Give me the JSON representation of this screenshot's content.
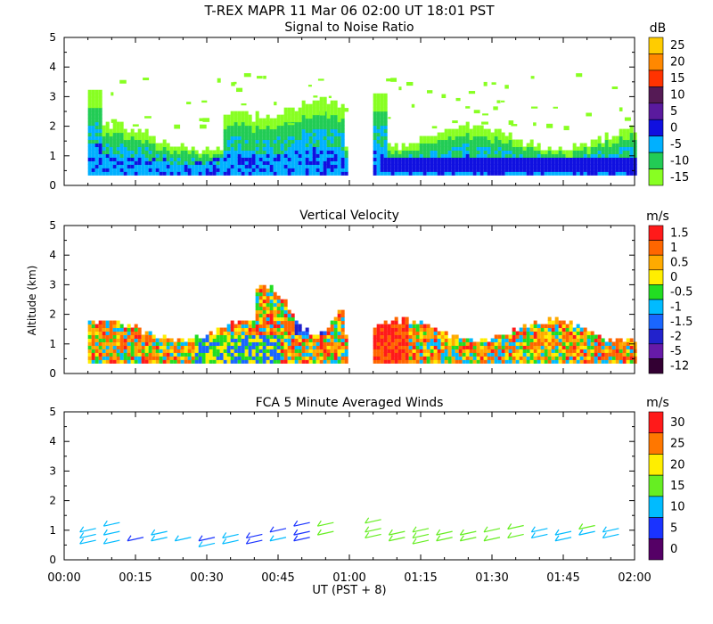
{
  "header": {
    "title": "T-REX   MAPR 11 Mar 06   02:00 UT   18:01   PST"
  },
  "x_axis": {
    "ticks": [
      "00:00",
      "00:15",
      "00:30",
      "00:45",
      "01:00",
      "01:15",
      "01:30",
      "01:45",
      "02:00"
    ],
    "label": "UT  (PST + 8)"
  },
  "y_axis_label": "Altitude (km)",
  "chart_data": [
    {
      "type": "heatmap",
      "title": "Signal to Noise Ratio",
      "xlabel": "UT  (PST + 8)",
      "ylabel": "Altitude (km)",
      "ylim": [
        0,
        5
      ],
      "yticks": [
        "0",
        "1",
        "2",
        "3",
        "4",
        "5"
      ],
      "colorbar": {
        "unit": "dB",
        "labels": [
          "25",
          "20",
          "15",
          "10",
          "5",
          "0",
          "-5",
          "-10",
          "-15"
        ],
        "colors": [
          "#ffcc00",
          "#ff8800",
          "#ff3300",
          "#551a55",
          "#5a1a9e",
          "#1010e0",
          "#00b0ff",
          "#22cc55",
          "#88ff22"
        ]
      },
      "regions": [
        {
          "name": "first-segment",
          "x_start_min": 5,
          "x_end_min": 59,
          "base_km": 0.3,
          "top_km": 1.5,
          "note": "SNR mostly -15 to -5 dB with -5 dB core near 0.5-1 km"
        },
        {
          "name": "second-segment",
          "x_start_min": 65,
          "x_end_min": 120,
          "base_km": 0.3,
          "top_km": 1.5,
          "note": "strong 0 dB layer near 0.6-0.8 km"
        }
      ]
    },
    {
      "type": "heatmap",
      "title": "Vertical Velocity",
      "xlabel": "UT  (PST + 8)",
      "ylabel": "Altitude (km)",
      "ylim": [
        0,
        5
      ],
      "yticks": [
        "0",
        "1",
        "2",
        "3",
        "4",
        "5"
      ],
      "colorbar": {
        "unit": "m/s",
        "labels": [
          "1.5",
          "1",
          "0.5",
          "0",
          "-0.5",
          "-1",
          "-1.5",
          "-2",
          "-5",
          "-12"
        ],
        "colors": [
          "#ff1a1a",
          "#ff6600",
          "#ffaa00",
          "#ffee00",
          "#22dd22",
          "#00bbff",
          "#1a66ff",
          "#2222cc",
          "#661aa8",
          "#330033"
        ]
      }
    },
    {
      "type": "scatter",
      "title": "FCA 5 Minute Averaged Winds",
      "xlabel": "UT  (PST + 8)",
      "ylabel": "Altitude (km)",
      "ylim": [
        0,
        5
      ],
      "yticks": [
        "0",
        "1",
        "2",
        "3",
        "4",
        "5"
      ],
      "colorbar": {
        "unit": "m/s",
        "labels": [
          "30",
          "25",
          "20",
          "15",
          "10",
          "5",
          "0"
        ],
        "colors": [
          "#ff1a1a",
          "#ff7700",
          "#ffee00",
          "#66ee22",
          "#00bbff",
          "#1a33ff",
          "#550066"
        ]
      },
      "barbs": [
        {
          "t": 5,
          "alt": 1.0,
          "speed": 8
        },
        {
          "t": 5,
          "alt": 0.8,
          "speed": 10
        },
        {
          "t": 5,
          "alt": 0.6,
          "speed": 10
        },
        {
          "t": 10,
          "alt": 1.2,
          "speed": 10
        },
        {
          "t": 10,
          "alt": 0.9,
          "speed": 10
        },
        {
          "t": 10,
          "alt": 0.6,
          "speed": 10
        },
        {
          "t": 15,
          "alt": 0.7,
          "speed": 5
        },
        {
          "t": 20,
          "alt": 0.9,
          "speed": 10
        },
        {
          "t": 20,
          "alt": 0.7,
          "speed": 10
        },
        {
          "t": 25,
          "alt": 0.7,
          "speed": 10
        },
        {
          "t": 30,
          "alt": 0.7,
          "speed": 5
        },
        {
          "t": 30,
          "alt": 0.5,
          "speed": 8
        },
        {
          "t": 35,
          "alt": 0.8,
          "speed": 8
        },
        {
          "t": 35,
          "alt": 0.6,
          "speed": 8
        },
        {
          "t": 40,
          "alt": 0.8,
          "speed": 5
        },
        {
          "t": 40,
          "alt": 0.6,
          "speed": 5
        },
        {
          "t": 45,
          "alt": 1.0,
          "speed": 5
        },
        {
          "t": 45,
          "alt": 0.7,
          "speed": 8
        },
        {
          "t": 50,
          "alt": 1.2,
          "speed": 5
        },
        {
          "t": 50,
          "alt": 0.9,
          "speed": 5
        },
        {
          "t": 50,
          "alt": 0.7,
          "speed": 5
        },
        {
          "t": 55,
          "alt": 1.2,
          "speed": 15
        },
        {
          "t": 55,
          "alt": 0.9,
          "speed": 15
        },
        {
          "t": 65,
          "alt": 1.3,
          "speed": 15
        },
        {
          "t": 65,
          "alt": 1.0,
          "speed": 15
        },
        {
          "t": 65,
          "alt": 0.8,
          "speed": 15
        },
        {
          "t": 70,
          "alt": 0.9,
          "speed": 15
        },
        {
          "t": 70,
          "alt": 0.7,
          "speed": 15
        },
        {
          "t": 75,
          "alt": 1.0,
          "speed": 15
        },
        {
          "t": 75,
          "alt": 0.8,
          "speed": 15
        },
        {
          "t": 75,
          "alt": 0.6,
          "speed": 15
        },
        {
          "t": 80,
          "alt": 0.9,
          "speed": 15
        },
        {
          "t": 80,
          "alt": 0.7,
          "speed": 15
        },
        {
          "t": 85,
          "alt": 0.9,
          "speed": 15
        },
        {
          "t": 85,
          "alt": 0.7,
          "speed": 15
        },
        {
          "t": 90,
          "alt": 1.0,
          "speed": 15
        },
        {
          "t": 90,
          "alt": 0.7,
          "speed": 15
        },
        {
          "t": 95,
          "alt": 1.1,
          "speed": 15
        },
        {
          "t": 95,
          "alt": 0.8,
          "speed": 15
        },
        {
          "t": 100,
          "alt": 1.0,
          "speed": 8
        },
        {
          "t": 100,
          "alt": 0.8,
          "speed": 10
        },
        {
          "t": 105,
          "alt": 0.9,
          "speed": 10
        },
        {
          "t": 105,
          "alt": 0.7,
          "speed": 10
        },
        {
          "t": 110,
          "alt": 1.1,
          "speed": 15
        },
        {
          "t": 110,
          "alt": 0.9,
          "speed": 10
        },
        {
          "t": 115,
          "alt": 1.0,
          "speed": 10
        },
        {
          "t": 115,
          "alt": 0.8,
          "speed": 10
        }
      ]
    }
  ]
}
